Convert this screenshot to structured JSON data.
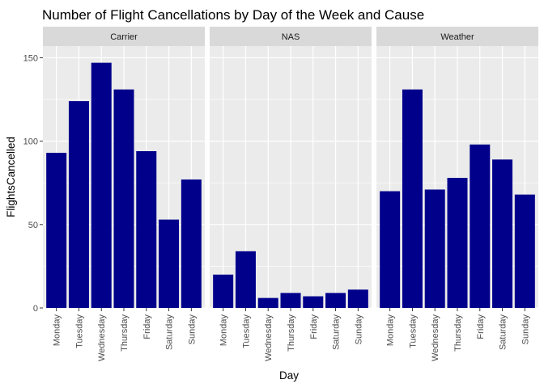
{
  "chart_data": {
    "type": "bar",
    "title": "Number of Flight Cancellations by Day of the Week and Cause",
    "xlabel": "Day",
    "ylabel": "FlightsCancelled",
    "categories": [
      "Monday",
      "Tuesday",
      "Wednesday",
      "Thursday",
      "Friday",
      "Saturday",
      "Sunday"
    ],
    "ylim": [
      0,
      157
    ],
    "yticks": [
      0,
      50,
      100,
      150
    ],
    "grid": true,
    "bar_color": "#00008B",
    "panel_color": "#EBEBEB",
    "strip_color": "#D9D9D9",
    "facets": [
      {
        "name": "Carrier",
        "values": [
          93,
          124,
          147,
          131,
          94,
          53,
          77
        ]
      },
      {
        "name": "NAS",
        "values": [
          20,
          34,
          6,
          9,
          7,
          9,
          11
        ]
      },
      {
        "name": "Weather",
        "values": [
          70,
          131,
          71,
          78,
          98,
          89,
          68
        ]
      }
    ]
  }
}
